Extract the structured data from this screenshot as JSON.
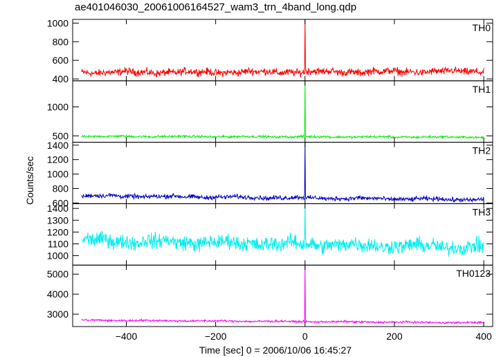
{
  "chart_data": {
    "type": "line",
    "title": "ae401046030_20061006164527_wam3_trn_4band_long.qdp",
    "xlabel": "Time [sec] 0 = 2006/10/06 16:45:27",
    "ylabel": "Counts/sec",
    "xlim": [
      -520,
      420
    ],
    "x_ticks": [
      -400,
      -200,
      0,
      200,
      400
    ],
    "x_tick_labels": [
      "−400",
      "−200",
      "0",
      "200",
      "400"
    ],
    "x_range_data": [
      -500,
      400
    ],
    "spike_x": 0,
    "grid": false,
    "panels": [
      {
        "name": "TH0",
        "color": "#ff0000",
        "ylim": [
          380,
          1040
        ],
        "yticks": [
          400,
          600,
          800,
          1000
        ],
        "baseline_start": 470,
        "baseline_end": 480,
        "noise": 28,
        "wobble": 8,
        "spike_peak": 1040,
        "spike_floor": 540
      },
      {
        "name": "TH1",
        "color": "#00ee00",
        "ylim": [
          390,
          1450
        ],
        "yticks": [
          500,
          1000
        ],
        "baseline_start": 492,
        "baseline_end": 478,
        "noise": 14,
        "wobble": 4,
        "spike_peak": 1450,
        "spike_floor": 520
      },
      {
        "name": "TH2",
        "color": "#0000cc",
        "ylim": [
          590,
          1440
        ],
        "yticks": [
          600,
          800,
          1000,
          1200,
          1400
        ],
        "baseline_start": 700,
        "baseline_end": 645,
        "noise": 22,
        "wobble": 7,
        "spike_peak": 1440,
        "spike_floor": 690
      },
      {
        "name": "TH3",
        "color": "#00eeee",
        "ylim": [
          920,
          1440
        ],
        "yticks": [
          1000,
          1100,
          1200,
          1300,
          1400
        ],
        "baseline_start": 1130,
        "baseline_end": 1070,
        "noise": 45,
        "wobble": 12,
        "spike_peak": 1440,
        "spike_floor": 1150
      },
      {
        "name": "TH0123",
        "color": "#ff00ff",
        "ylim": [
          2380,
          5450
        ],
        "yticks": [
          3000,
          4000,
          5000
        ],
        "baseline_start": 2700,
        "baseline_end": 2570,
        "noise": 35,
        "wobble": 10,
        "spike_peak": 5450,
        "spike_floor": 2800
      }
    ]
  }
}
